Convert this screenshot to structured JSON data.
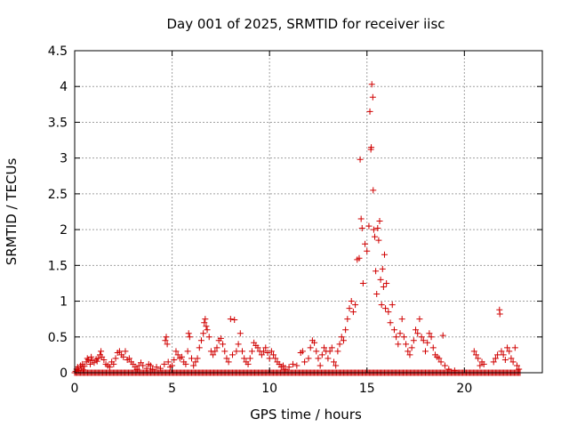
{
  "chart_data": {
    "type": "scatter",
    "title": "Day 001 of 2025, SRMTID for receiver iisc",
    "xlabel": "GPS time / hours",
    "ylabel": "SRMTID / TECUs",
    "xlim": [
      0,
      24
    ],
    "ylim": [
      0,
      4.5
    ],
    "x_ticks": [
      0,
      5,
      10,
      15,
      20
    ],
    "x_tick_labels": [
      "0",
      "5",
      "10",
      "15",
      "20"
    ],
    "y_ticks": [
      0,
      0.5,
      1,
      1.5,
      2,
      2.5,
      3,
      3.5,
      4,
      4.5
    ],
    "y_tick_labels": [
      "0",
      "0.5",
      "1",
      "1.5",
      "2",
      "2.5",
      "3",
      "3.5",
      "4",
      "4.5"
    ],
    "grid": true,
    "marker": "+",
    "series": [
      {
        "name": "SRMTID",
        "color": "#d00000",
        "points": [
          [
            0.05,
            0.02
          ],
          [
            0.1,
            0.05
          ],
          [
            0.15,
            0.08
          ],
          [
            0.2,
            0.03
          ],
          [
            0.3,
            0.1
          ],
          [
            0.35,
            0.06
          ],
          [
            0.4,
            0.12
          ],
          [
            0.45,
            0.04
          ],
          [
            0.5,
            0.09
          ],
          [
            0.6,
            0.15
          ],
          [
            0.65,
            0.2
          ],
          [
            0.7,
            0.18
          ],
          [
            0.8,
            0.12
          ],
          [
            0.85,
            0.22
          ],
          [
            0.9,
            0.17
          ],
          [
            1.0,
            0.14
          ],
          [
            1.1,
            0.19
          ],
          [
            1.15,
            0.16
          ],
          [
            1.2,
            0.2
          ],
          [
            1.3,
            0.25
          ],
          [
            1.35,
            0.3
          ],
          [
            1.4,
            0.22
          ],
          [
            1.5,
            0.18
          ],
          [
            1.6,
            0.12
          ],
          [
            1.7,
            0.1
          ],
          [
            1.8,
            0.08
          ],
          [
            1.9,
            0.15
          ],
          [
            2.0,
            0.12
          ],
          [
            2.1,
            0.2
          ],
          [
            2.2,
            0.28
          ],
          [
            2.3,
            0.3
          ],
          [
            2.4,
            0.25
          ],
          [
            2.5,
            0.22
          ],
          [
            2.6,
            0.3
          ],
          [
            2.7,
            0.18
          ],
          [
            2.8,
            0.2
          ],
          [
            2.9,
            0.15
          ],
          [
            3.0,
            0.12
          ],
          [
            3.1,
            0.08
          ],
          [
            3.2,
            0.05
          ],
          [
            3.3,
            0.1
          ],
          [
            3.4,
            0.14
          ],
          [
            3.5,
            0.1
          ],
          [
            3.7,
            0.06
          ],
          [
            3.8,
            0.12
          ],
          [
            3.9,
            0.1
          ],
          [
            4.0,
            0.05
          ],
          [
            4.2,
            0.08
          ],
          [
            4.4,
            0.06
          ],
          [
            4.6,
            0.12
          ],
          [
            4.65,
            0.45
          ],
          [
            4.7,
            0.5
          ],
          [
            4.75,
            0.4
          ],
          [
            4.8,
            0.15
          ],
          [
            4.9,
            0.08
          ],
          [
            5.0,
            0.1
          ],
          [
            5.1,
            0.18
          ],
          [
            5.2,
            0.3
          ],
          [
            5.3,
            0.25
          ],
          [
            5.4,
            0.2
          ],
          [
            5.5,
            0.22
          ],
          [
            5.6,
            0.15
          ],
          [
            5.7,
            0.12
          ],
          [
            5.8,
            0.3
          ],
          [
            5.85,
            0.55
          ],
          [
            5.9,
            0.5
          ],
          [
            6.0,
            0.2
          ],
          [
            6.1,
            0.1
          ],
          [
            6.2,
            0.15
          ],
          [
            6.3,
            0.2
          ],
          [
            6.4,
            0.35
          ],
          [
            6.5,
            0.45
          ],
          [
            6.6,
            0.55
          ],
          [
            6.65,
            0.7
          ],
          [
            6.7,
            0.75
          ],
          [
            6.75,
            0.65
          ],
          [
            6.8,
            0.6
          ],
          [
            6.9,
            0.5
          ],
          [
            7.0,
            0.3
          ],
          [
            7.1,
            0.25
          ],
          [
            7.2,
            0.3
          ],
          [
            7.3,
            0.35
          ],
          [
            7.4,
            0.45
          ],
          [
            7.5,
            0.48
          ],
          [
            7.6,
            0.4
          ],
          [
            7.7,
            0.3
          ],
          [
            7.8,
            0.2
          ],
          [
            7.9,
            0.15
          ],
          [
            8.0,
            0.75
          ],
          [
            8.1,
            0.25
          ],
          [
            8.2,
            0.74
          ],
          [
            8.3,
            0.3
          ],
          [
            8.4,
            0.4
          ],
          [
            8.5,
            0.55
          ],
          [
            8.6,
            0.3
          ],
          [
            8.7,
            0.2
          ],
          [
            8.8,
            0.15
          ],
          [
            8.9,
            0.12
          ],
          [
            9.0,
            0.2
          ],
          [
            9.1,
            0.3
          ],
          [
            9.2,
            0.42
          ],
          [
            9.3,
            0.38
          ],
          [
            9.4,
            0.35
          ],
          [
            9.5,
            0.3
          ],
          [
            9.6,
            0.25
          ],
          [
            9.7,
            0.3
          ],
          [
            9.8,
            0.35
          ],
          [
            9.9,
            0.28
          ],
          [
            10.0,
            0.2
          ],
          [
            10.1,
            0.3
          ],
          [
            10.2,
            0.25
          ],
          [
            10.3,
            0.2
          ],
          [
            10.4,
            0.15
          ],
          [
            10.5,
            0.12
          ],
          [
            10.6,
            0.08
          ],
          [
            10.7,
            0.1
          ],
          [
            10.8,
            0.05
          ],
          [
            11.0,
            0.08
          ],
          [
            11.2,
            0.12
          ],
          [
            11.4,
            0.1
          ],
          [
            11.6,
            0.28
          ],
          [
            11.7,
            0.3
          ],
          [
            11.8,
            0.15
          ],
          [
            12.0,
            0.2
          ],
          [
            12.1,
            0.35
          ],
          [
            12.2,
            0.45
          ],
          [
            12.3,
            0.42
          ],
          [
            12.4,
            0.3
          ],
          [
            12.5,
            0.2
          ],
          [
            12.6,
            0.1
          ],
          [
            12.7,
            0.25
          ],
          [
            12.8,
            0.35
          ],
          [
            12.9,
            0.3
          ],
          [
            13.0,
            0.2
          ],
          [
            13.1,
            0.3
          ],
          [
            13.2,
            0.35
          ],
          [
            13.3,
            0.15
          ],
          [
            13.4,
            0.1
          ],
          [
            13.5,
            0.3
          ],
          [
            13.6,
            0.4
          ],
          [
            13.7,
            0.5
          ],
          [
            13.8,
            0.45
          ],
          [
            13.9,
            0.6
          ],
          [
            14.0,
            0.75
          ],
          [
            14.1,
            0.9
          ],
          [
            14.2,
            1.0
          ],
          [
            14.3,
            0.85
          ],
          [
            14.4,
            0.95
          ],
          [
            14.5,
            1.58
          ],
          [
            14.6,
            1.6
          ],
          [
            14.65,
            2.98
          ],
          [
            14.7,
            2.15
          ],
          [
            14.75,
            2.02
          ],
          [
            14.8,
            1.25
          ],
          [
            14.9,
            1.8
          ],
          [
            15.0,
            1.7
          ],
          [
            15.1,
            2.05
          ],
          [
            15.15,
            3.65
          ],
          [
            15.2,
            3.12
          ],
          [
            15.22,
            3.15
          ],
          [
            15.25,
            4.03
          ],
          [
            15.3,
            3.85
          ],
          [
            15.32,
            2.55
          ],
          [
            15.35,
            2.0
          ],
          [
            15.4,
            1.9
          ],
          [
            15.45,
            1.42
          ],
          [
            15.5,
            1.1
          ],
          [
            15.55,
            2.02
          ],
          [
            15.6,
            1.85
          ],
          [
            15.65,
            2.12
          ],
          [
            15.7,
            1.3
          ],
          [
            15.75,
            0.95
          ],
          [
            15.8,
            1.45
          ],
          [
            15.85,
            1.2
          ],
          [
            15.9,
            1.65
          ],
          [
            15.95,
            0.9
          ],
          [
            16.0,
            1.25
          ],
          [
            16.1,
            0.85
          ],
          [
            16.2,
            0.7
          ],
          [
            16.3,
            0.95
          ],
          [
            16.4,
            0.6
          ],
          [
            16.5,
            0.5
          ],
          [
            16.6,
            0.4
          ],
          [
            16.7,
            0.55
          ],
          [
            16.8,
            0.75
          ],
          [
            16.9,
            0.5
          ],
          [
            17.0,
            0.4
          ],
          [
            17.1,
            0.3
          ],
          [
            17.2,
            0.25
          ],
          [
            17.3,
            0.35
          ],
          [
            17.4,
            0.45
          ],
          [
            17.5,
            0.6
          ],
          [
            17.6,
            0.55
          ],
          [
            17.7,
            0.75
          ],
          [
            17.8,
            0.5
          ],
          [
            17.9,
            0.45
          ],
          [
            18.0,
            0.3
          ],
          [
            18.1,
            0.42
          ],
          [
            18.2,
            0.55
          ],
          [
            18.3,
            0.5
          ],
          [
            18.4,
            0.35
          ],
          [
            18.5,
            0.25
          ],
          [
            18.6,
            0.22
          ],
          [
            18.7,
            0.2
          ],
          [
            18.8,
            0.15
          ],
          [
            18.9,
            0.52
          ],
          [
            19.0,
            0.1
          ],
          [
            19.2,
            0.05
          ],
          [
            19.5,
            0.03
          ],
          [
            20.5,
            0.3
          ],
          [
            20.6,
            0.25
          ],
          [
            20.7,
            0.2
          ],
          [
            20.8,
            0.1
          ],
          [
            20.9,
            0.15
          ],
          [
            21.0,
            0.12
          ],
          [
            21.5,
            0.15
          ],
          [
            21.6,
            0.2
          ],
          [
            21.7,
            0.25
          ],
          [
            21.8,
            0.88
          ],
          [
            21.82,
            0.82
          ],
          [
            21.9,
            0.3
          ],
          [
            22.0,
            0.25
          ],
          [
            22.1,
            0.18
          ],
          [
            22.2,
            0.35
          ],
          [
            22.3,
            0.3
          ],
          [
            22.4,
            0.2
          ],
          [
            22.5,
            0.15
          ],
          [
            22.6,
            0.35
          ],
          [
            22.7,
            0.1
          ],
          [
            22.8,
            0.05
          ]
        ]
      }
    ],
    "baseline": {
      "description_value": 0,
      "x_range": [
        0,
        22.9
      ]
    }
  }
}
